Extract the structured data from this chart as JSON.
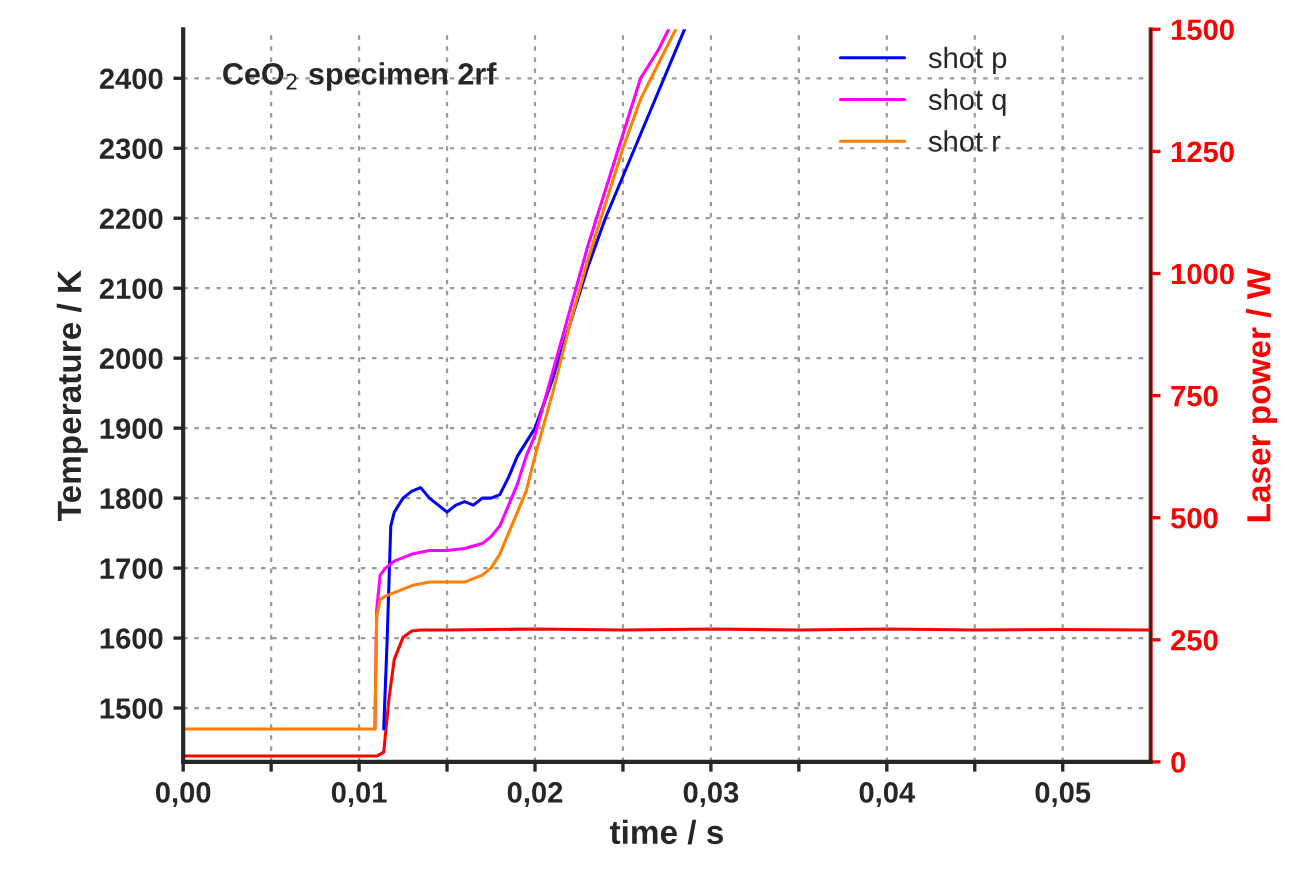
{
  "chart_data": {
    "type": "line",
    "xlabel": "time / s",
    "ylabel": "Temperature / K",
    "y2label": "Laser power / W",
    "annotations": [
      "CeO$_{2}$ specimen 2rf"
    ],
    "xlim": [
      0,
      0.055
    ],
    "xticks": [
      {
        "value": 0,
        "label": "0,00"
      },
      {
        "value": 0.005,
        "label": null
      },
      {
        "value": 0.01,
        "label": "0,01"
      },
      {
        "value": 0.015,
        "label": null
      },
      {
        "value": 0.02,
        "label": "0,02"
      },
      {
        "value": 0.025,
        "label": null
      },
      {
        "value": 0.03,
        "label": "0,03"
      },
      {
        "value": 0.035,
        "label": null
      },
      {
        "value": 0.04,
        "label": "0,04"
      },
      {
        "value": 0.045,
        "label": null
      },
      {
        "value": 0.05,
        "label": "0,05"
      }
    ],
    "ylim": [
      1423,
      2470
    ],
    "yticks": [
      1500,
      1600,
      1700,
      1800,
      1900,
      2000,
      2100,
      2200,
      2300,
      2400
    ],
    "y2lim": [
      0,
      1500
    ],
    "y2ticks": [
      0,
      250,
      500,
      750,
      1000,
      1250,
      1500
    ],
    "grid": true,
    "legend": "top right",
    "line_style": "solid",
    "marker": "none",
    "series": [
      {
        "name": "shot p",
        "color": "#0000ff",
        "x": [
          0.0114,
          0.0116,
          0.0118,
          0.012,
          0.0125,
          0.013,
          0.0135,
          0.014,
          0.0145,
          0.015,
          0.0155,
          0.016,
          0.0165,
          0.017,
          0.0175,
          0.018,
          0.0185,
          0.019,
          0.0195,
          0.02,
          0.021,
          0.022,
          0.023,
          0.024,
          0.025,
          0.026,
          0.027,
          0.028,
          0.0285
        ],
        "values": [
          1470,
          1600,
          1760,
          1780,
          1800,
          1810,
          1815,
          1800,
          1790,
          1780,
          1790,
          1795,
          1790,
          1800,
          1800,
          1805,
          1830,
          1860,
          1880,
          1900,
          1970,
          2050,
          2130,
          2200,
          2260,
          2320,
          2380,
          2440,
          2470
        ]
      },
      {
        "name": "shot q",
        "color": "#ff00ff",
        "x": [
          0.0109,
          0.011,
          0.0112,
          0.0115,
          0.012,
          0.013,
          0.014,
          0.015,
          0.016,
          0.017,
          0.0175,
          0.018,
          0.0185,
          0.019,
          0.0195,
          0.02,
          0.021,
          0.022,
          0.023,
          0.024,
          0.025,
          0.026,
          0.027,
          0.0276
        ],
        "values": [
          1470,
          1640,
          1690,
          1700,
          1710,
          1720,
          1725,
          1725,
          1728,
          1735,
          1745,
          1760,
          1790,
          1820,
          1860,
          1890,
          1980,
          2070,
          2160,
          2240,
          2320,
          2400,
          2440,
          2470
        ]
      },
      {
        "name": "shot r",
        "color": "#ff8000",
        "x": [
          0,
          0.0109,
          0.011,
          0.0112,
          0.0115,
          0.012,
          0.013,
          0.014,
          0.015,
          0.016,
          0.017,
          0.0175,
          0.018,
          0.0185,
          0.019,
          0.0195,
          0.02,
          0.021,
          0.022,
          0.023,
          0.024,
          0.025,
          0.026,
          0.027,
          0.028
        ],
        "values": [
          1470,
          1470,
          1630,
          1655,
          1660,
          1665,
          1675,
          1680,
          1680,
          1680,
          1690,
          1700,
          1720,
          1750,
          1780,
          1810,
          1860,
          1950,
          2050,
          2140,
          2220,
          2300,
          2370,
          2420,
          2470
        ]
      },
      {
        "color": "#ff0000",
        "axis": "y2",
        "x": [
          0,
          0.011,
          0.0114,
          0.0117,
          0.012,
          0.0125,
          0.013,
          0.0135,
          0.015,
          0.02,
          0.025,
          0.03,
          0.035,
          0.04,
          0.045,
          0.05,
          0.055
        ],
        "values": [
          12,
          12,
          20,
          130,
          210,
          255,
          268,
          270,
          270,
          272,
          270,
          272,
          270,
          272,
          270,
          271,
          270
        ]
      }
    ]
  }
}
